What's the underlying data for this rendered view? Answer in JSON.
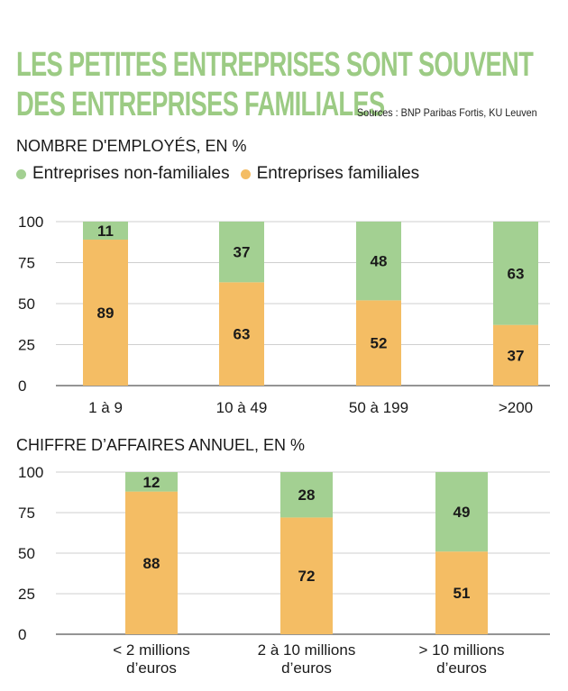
{
  "header": {
    "title_line1": "LES PETITES ENTREPRISES SONT SOUVENT",
    "title_line2": "DES ENTREPRISES FAMILIALES",
    "source": "Sources : BNP Paribas Fortis, KU Leuven"
  },
  "legend": {
    "items": [
      {
        "label": "Entreprises non-familiales",
        "color": "#a3d092"
      },
      {
        "label": "Entreprises familiales",
        "color": "#f4bd64"
      }
    ]
  },
  "chart_data": [
    {
      "type": "bar",
      "stacked": true,
      "title": "NOMBRE D'EMPLOYÉS, EN %",
      "categories": [
        "1 à 9",
        "10 à 49",
        "50 à 199",
        ">200"
      ],
      "series": [
        {
          "name": "Entreprises familiales",
          "color": "#f4bd64",
          "values": [
            89,
            63,
            52,
            37
          ]
        },
        {
          "name": "Entreprises non-familiales",
          "color": "#a3d092",
          "values": [
            11,
            37,
            48,
            63
          ]
        }
      ],
      "ylim": [
        0,
        100
      ],
      "yticks": [
        0,
        25,
        50,
        75,
        100
      ],
      "grid": true
    },
    {
      "type": "bar",
      "stacked": true,
      "title": "CHIFFRE D’AFFAIRES ANNUEL, EN %",
      "categories": [
        [
          "< 2 millions",
          "d’euros"
        ],
        [
          "2 à 10 millions",
          "d’euros"
        ],
        [
          "> 10 millions",
          "d’euros"
        ]
      ],
      "series": [
        {
          "name": "Entreprises familiales",
          "color": "#f4bd64",
          "values": [
            88,
            72,
            51
          ]
        },
        {
          "name": "Entreprises non-familiales",
          "color": "#a3d092",
          "values": [
            12,
            28,
            49
          ]
        }
      ],
      "ylim": [
        0,
        100
      ],
      "yticks": [
        0,
        25,
        50,
        75,
        100
      ],
      "grid": true
    }
  ]
}
